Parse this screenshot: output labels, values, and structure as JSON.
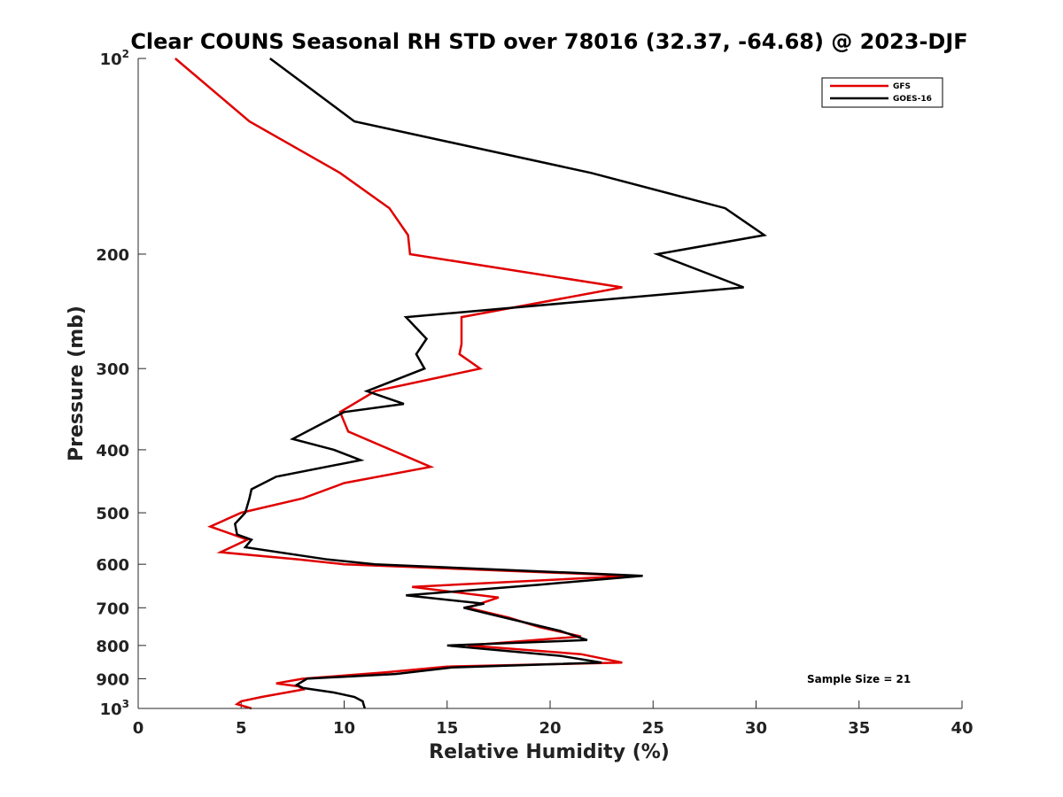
{
  "chart_data": {
    "type": "line",
    "orientation": "profile",
    "title": "Clear COUNS Seasonal RH STD over 78016 (32.37, -64.68) @ 2023-DJF",
    "xlabel": "Relative Humidity (%)",
    "ylabel": "Pressure (mb)",
    "xlim": [
      0,
      40
    ],
    "ylim": [
      100,
      1000
    ],
    "yscale": "log",
    "y_reversed": true,
    "xticks": [
      0,
      5,
      10,
      15,
      20,
      25,
      30,
      35,
      40
    ],
    "yticks": [
      {
        "value": 100,
        "base": "10",
        "exp": "2"
      },
      {
        "value": 200,
        "label": "200"
      },
      {
        "value": 300,
        "label": "300"
      },
      {
        "value": 400,
        "label": "400"
      },
      {
        "value": 500,
        "label": "500"
      },
      {
        "value": 600,
        "label": "600"
      },
      {
        "value": 700,
        "label": "700"
      },
      {
        "value": 800,
        "label": "800"
      },
      {
        "value": 900,
        "label": "900"
      },
      {
        "value": 1000,
        "base": "10",
        "exp": "3"
      }
    ],
    "legend_position": "top-right",
    "series": [
      {
        "name": "GFS",
        "color": "#e00000",
        "points": [
          [
            1.8,
            100
          ],
          [
            5.4,
            125
          ],
          [
            9.8,
            150
          ],
          [
            12.2,
            170
          ],
          [
            13.1,
            187
          ],
          [
            13.2,
            200
          ],
          [
            23.5,
            225
          ],
          [
            15.7,
            250
          ],
          [
            15.7,
            275
          ],
          [
            15.6,
            285
          ],
          [
            16.6,
            300
          ],
          [
            11.5,
            325
          ],
          [
            9.8,
            350
          ],
          [
            10.2,
            375
          ],
          [
            14.2,
            425
          ],
          [
            10.0,
            450
          ],
          [
            8.0,
            475
          ],
          [
            5.0,
            500
          ],
          [
            3.5,
            525
          ],
          [
            5.3,
            550
          ],
          [
            4.0,
            575
          ],
          [
            7.8,
            590
          ],
          [
            10.0,
            600
          ],
          [
            24.0,
            625
          ],
          [
            13.3,
            650
          ],
          [
            17.5,
            675
          ],
          [
            16.0,
            700
          ],
          [
            18.0,
            725
          ],
          [
            19.5,
            750
          ],
          [
            21.5,
            775
          ],
          [
            16.0,
            800
          ],
          [
            21.5,
            825
          ],
          [
            23.5,
            850
          ],
          [
            15.0,
            862
          ],
          [
            12.0,
            880
          ],
          [
            8.0,
            900
          ],
          [
            6.7,
            915
          ],
          [
            7.8,
            925
          ],
          [
            8.0,
            935
          ],
          [
            6.0,
            960
          ],
          [
            5.0,
            975
          ],
          [
            4.8,
            985
          ],
          [
            5.5,
            1000
          ]
        ]
      },
      {
        "name": "GOES-16",
        "color": "#000000",
        "points": [
          [
            6.4,
            100
          ],
          [
            10.5,
            125
          ],
          [
            22.0,
            150
          ],
          [
            28.5,
            170
          ],
          [
            30.4,
            187
          ],
          [
            25.2,
            200
          ],
          [
            29.4,
            225
          ],
          [
            13.0,
            250
          ],
          [
            14.0,
            270
          ],
          [
            13.5,
            285
          ],
          [
            13.9,
            300
          ],
          [
            11.1,
            325
          ],
          [
            12.9,
            340
          ],
          [
            10.0,
            350
          ],
          [
            7.5,
            385
          ],
          [
            9.5,
            400
          ],
          [
            10.8,
            415
          ],
          [
            6.7,
            440
          ],
          [
            5.5,
            460
          ],
          [
            5.4,
            475
          ],
          [
            5.2,
            500
          ],
          [
            4.7,
            520
          ],
          [
            4.8,
            540
          ],
          [
            5.5,
            550
          ],
          [
            5.2,
            565
          ],
          [
            9.2,
            590
          ],
          [
            11.5,
            600
          ],
          [
            24.5,
            625
          ],
          [
            19.5,
            645
          ],
          [
            13.0,
            670
          ],
          [
            16.8,
            690
          ],
          [
            15.8,
            700
          ],
          [
            17.8,
            725
          ],
          [
            20.5,
            760
          ],
          [
            21.8,
            785
          ],
          [
            15.0,
            800
          ],
          [
            20.5,
            830
          ],
          [
            22.5,
            850
          ],
          [
            15.2,
            865
          ],
          [
            12.5,
            885
          ],
          [
            8.2,
            900
          ],
          [
            7.7,
            920
          ],
          [
            8.0,
            930
          ],
          [
            9.5,
            945
          ],
          [
            10.5,
            960
          ],
          [
            10.9,
            975
          ],
          [
            11.0,
            1000
          ]
        ]
      }
    ],
    "annotations": [
      {
        "text": "Sample Size = 21"
      }
    ]
  }
}
